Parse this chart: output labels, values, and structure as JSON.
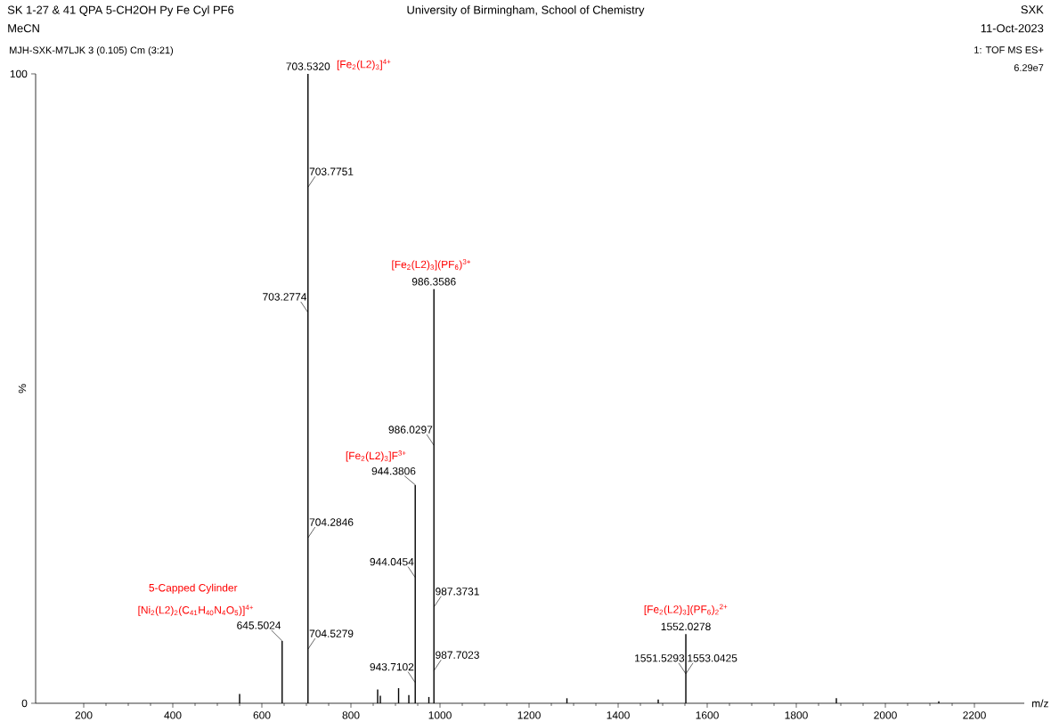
{
  "chart_data": {
    "type": "bar",
    "title": "SK 1-27 & 41 QPA 5-CH2OH Py Fe Cyl PF6",
    "subtitle": "MeCN",
    "xlabel": "m/z",
    "ylabel": "%",
    "x": [
      550,
      645.5024,
      703.532,
      860,
      866,
      907,
      930,
      944.3806,
      975,
      986.3586,
      1285,
      1490,
      1552.0278,
      1890,
      2120
    ],
    "values": [
      1.5,
      9.9,
      100,
      2.2,
      1.2,
      2.4,
      1.3,
      34.7,
      1,
      65.8,
      0.8,
      0.6,
      11,
      0.8,
      0.3
    ],
    "color": "#000000",
    "xlim": [
      92,
      2312
    ],
    "ylim": [
      0,
      100
    ],
    "xticks": [
      200,
      400,
      600,
      800,
      1000,
      1200,
      1400,
      1600,
      1800,
      2000,
      2200
    ],
    "yticks": [
      0,
      100
    ],
    "annotations": [
      {
        "text": "703.5320",
        "x": 703.532,
        "y": 100
      },
      "703.7751",
      "703.2774",
      "704.2846",
      "704.5279",
      {
        "text": "645.5024",
        "x": 645.5024,
        "y": 9.9
      },
      {
        "text": "944.3806",
        "x": 944.3806,
        "y": 34.7
      },
      "944.0454",
      "943.7102",
      {
        "text": "986.3586",
        "x": 986.3586,
        "y": 65.8
      },
      "986.0297",
      "987.3731",
      "987.7023",
      {
        "text": "1552.0278",
        "x": 1552.0278,
        "y": 11
      },
      "1551.5293",
      "1553.0425",
      {
        "text": "[Fe$_{2}$(L2)$_{3}$]$^{4+}$",
        "x": 703.532,
        "y": 100
      },
      {
        "text": "[Fe$_{2}$(L2)$_{3}$](PF$_{6}$)$^{3+}$",
        "x": 986.3586,
        "y": 65.8
      },
      {
        "text": "[Fe$_{2}$(L2)$_{3}$]F$^{3+}$",
        "x": 944.3806,
        "y": 34.7
      },
      "5-Capped Cylinder",
      "[Ni$_{2}$(L2)$_{2}$(C$_{41}$H$_{40}$N$_{4}$O$_{5}$)]$^{4+}$",
      "[Fe$_{2}$(L2)$_{3}$](PF$_{6}$)$_{2}$$^{2+}$",
      "MJH-SXK-M7LJK 3 (0.105) Cm (3:21)",
      "University of Birmingham, School of Chemistry",
      "SXK",
      "11-Oct-2023",
      "1: TOF MS ES+",
      "6.29e7"
    ]
  }
}
